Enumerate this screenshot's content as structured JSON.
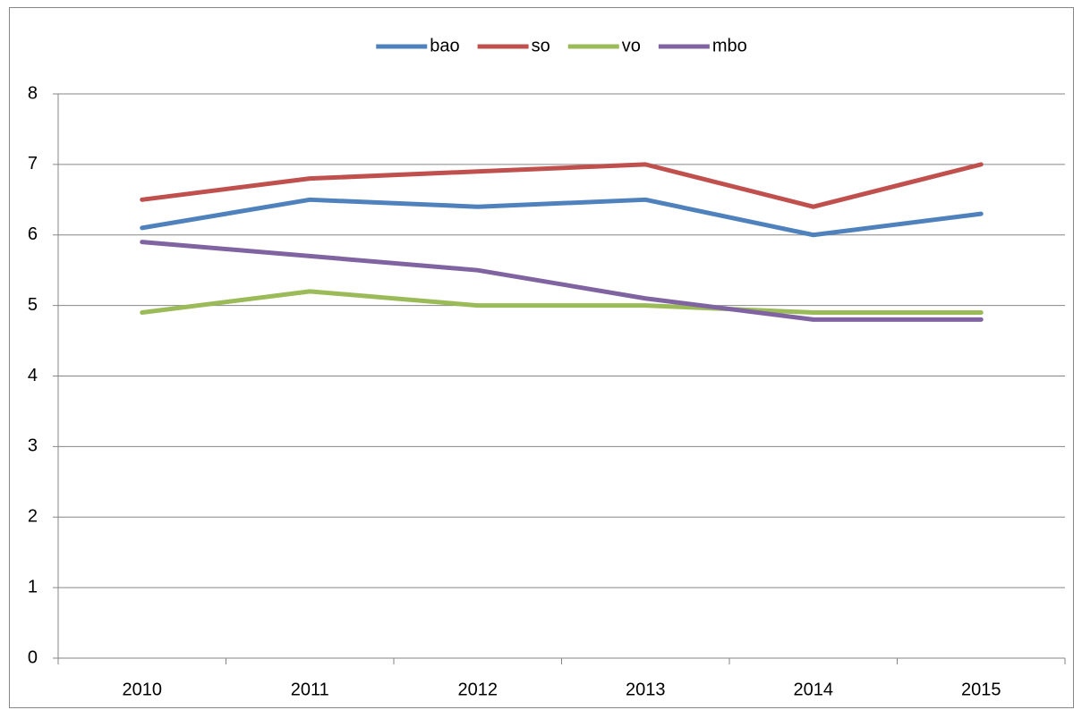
{
  "chart_data": {
    "type": "line",
    "categories": [
      "2010",
      "2011",
      "2012",
      "2013",
      "2014",
      "2015"
    ],
    "series": [
      {
        "name": "bao",
        "color": "#4f81bd",
        "values": [
          6.1,
          6.5,
          6.4,
          6.5,
          6.0,
          6.3
        ]
      },
      {
        "name": "so",
        "color": "#c0504d",
        "values": [
          6.5,
          6.8,
          6.9,
          7.0,
          6.4,
          7.0
        ]
      },
      {
        "name": "vo",
        "color": "#9bbb59",
        "values": [
          4.9,
          5.2,
          5.0,
          5.0,
          4.9,
          4.9
        ]
      },
      {
        "name": "mbo",
        "color": "#8064a2",
        "values": [
          5.9,
          5.7,
          5.5,
          5.1,
          4.8,
          4.8
        ]
      }
    ],
    "ylim": [
      0,
      8
    ],
    "yticks": [
      0,
      1,
      2,
      3,
      4,
      5,
      6,
      7,
      8
    ],
    "grid": true,
    "legend": "top"
  }
}
